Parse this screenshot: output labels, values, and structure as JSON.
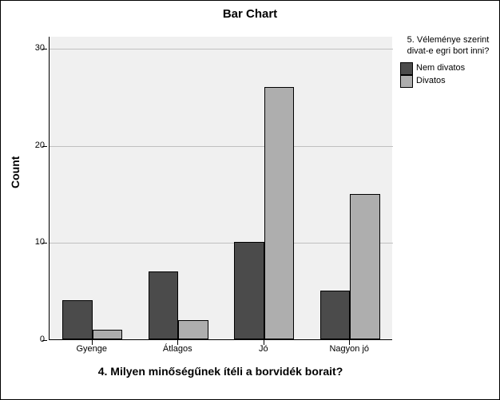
{
  "chart": {
    "type": "bar",
    "title": "Bar Chart",
    "title_fontsize": 15,
    "background_color": "#ffffff",
    "plot_background_color": "#f0f0f0",
    "grid_color": "#c0c0c0",
    "border_color": "#000000",
    "ylabel": "Count",
    "xlabel": "4. Milyen minőségűnek ítéli a borvidék borait?",
    "label_fontsize": 14,
    "tick_fontsize": 11,
    "ylim": [
      0,
      30
    ],
    "ytick_step": 10,
    "yticks": [
      0,
      10,
      20,
      30
    ],
    "categories": [
      "Gyenge",
      "Átlagos",
      "Jó",
      "Nagyon jó"
    ],
    "series": [
      {
        "name": "Nem divatos",
        "color": "#4b4b4b",
        "values": [
          4,
          7,
          10,
          5
        ]
      },
      {
        "name": "Divatos",
        "color": "#aeaeae",
        "values": [
          1,
          2,
          26,
          15
        ]
      }
    ],
    "bar_width": 0.32,
    "legend": {
      "title": "5. Véleménye szerint divat-e egri bort inni?",
      "position": "right"
    }
  }
}
